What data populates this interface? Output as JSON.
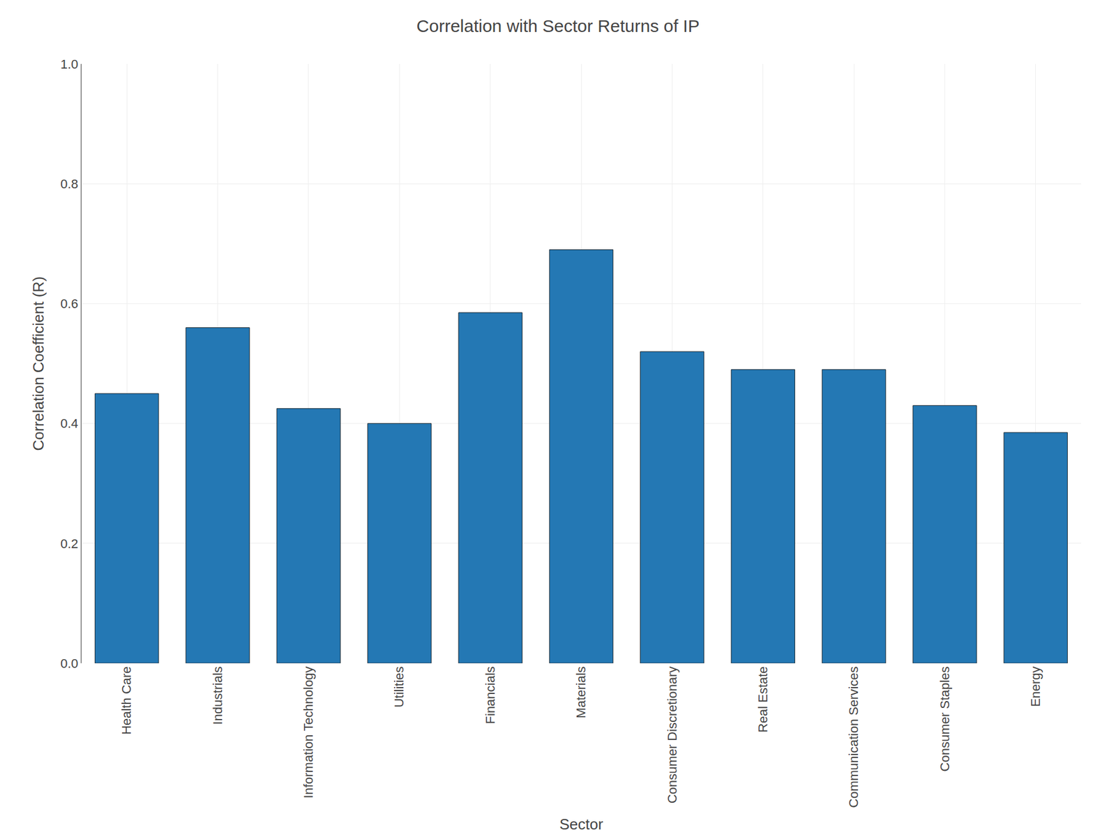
{
  "chart_data": {
    "type": "bar",
    "title": "Correlation with Sector Returns of IP",
    "xlabel": "Sector",
    "ylabel": "Correlation Coefficient (R)",
    "categories": [
      "Health Care",
      "Industrials",
      "Information Technology",
      "Utilities",
      "Financials",
      "Materials",
      "Consumer Discretionary",
      "Real Estate",
      "Communication Services",
      "Consumer Staples",
      "Energy"
    ],
    "values": [
      0.45,
      0.56,
      0.425,
      0.4,
      0.585,
      0.69,
      0.52,
      0.49,
      0.49,
      0.43,
      0.385
    ],
    "color": "#2478b4",
    "ylim": [
      0.0,
      1.0
    ],
    "yticks": [
      {
        "value": 0.0,
        "label": "0.0"
      },
      0.2,
      0.4,
      0.6,
      0.8,
      {
        "value": 1.0,
        "label": "1.0"
      }
    ],
    "grid": true
  }
}
